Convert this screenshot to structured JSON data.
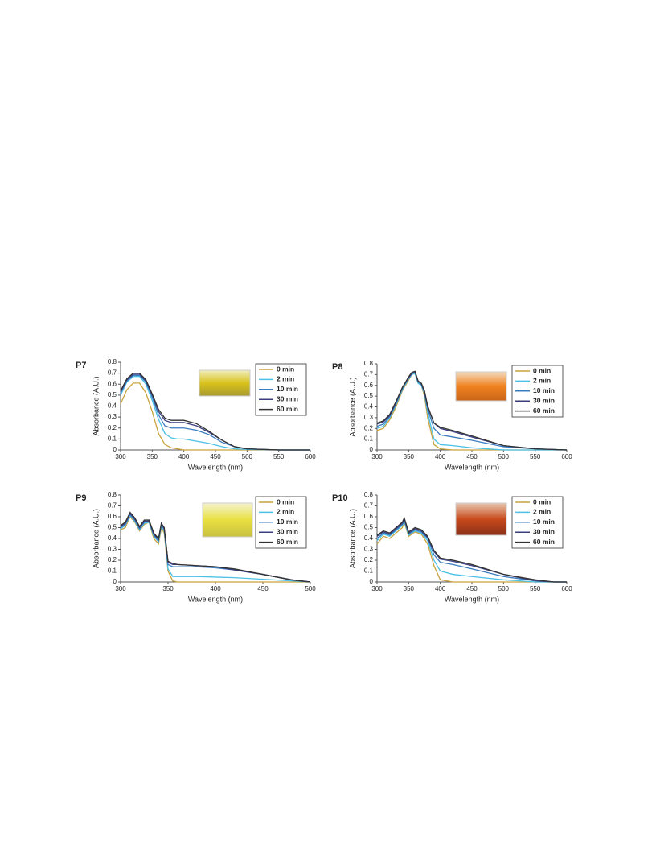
{
  "chart_data": [
    {
      "type": "line",
      "panel_label": "P7",
      "x_label": "Wavelength (nm)",
      "y_label": "Absorbance (A.U.)",
      "legend": "upper right",
      "x": [
        300,
        310,
        320,
        330,
        340,
        350,
        360,
        370,
        380,
        390,
        400,
        420,
        440,
        460,
        480,
        500,
        550,
        600
      ],
      "xlim": [
        300,
        600
      ],
      "xticks": [
        300,
        350,
        400,
        450,
        500,
        550,
        600
      ],
      "ylim": [
        0,
        0.8
      ],
      "yticks": [
        0,
        0.1,
        0.2,
        0.3,
        0.4,
        0.5,
        0.6,
        0.7,
        0.8
      ],
      "series": [
        {
          "name": "0 min",
          "color": "#c9a23c",
          "values": [
            0.42,
            0.55,
            0.61,
            0.61,
            0.52,
            0.35,
            0.15,
            0.05,
            0.02,
            0.01,
            0,
            0,
            0,
            0,
            0,
            0,
            0,
            0
          ]
        },
        {
          "name": "2 min",
          "color": "#4cc0e6",
          "values": [
            0.5,
            0.62,
            0.67,
            0.67,
            0.6,
            0.45,
            0.28,
            0.15,
            0.11,
            0.1,
            0.1,
            0.08,
            0.06,
            0.03,
            0.01,
            0.005,
            0,
            0
          ]
        },
        {
          "name": "10 min",
          "color": "#3a7cc0",
          "values": [
            0.52,
            0.63,
            0.68,
            0.68,
            0.62,
            0.48,
            0.32,
            0.22,
            0.2,
            0.2,
            0.2,
            0.18,
            0.14,
            0.07,
            0.03,
            0.01,
            0,
            0
          ]
        },
        {
          "name": "30 min",
          "color": "#3b3f82",
          "values": [
            0.53,
            0.64,
            0.69,
            0.69,
            0.63,
            0.5,
            0.35,
            0.27,
            0.25,
            0.25,
            0.25,
            0.22,
            0.16,
            0.09,
            0.03,
            0.01,
            0,
            0
          ]
        },
        {
          "name": "60 min",
          "color": "#333333",
          "values": [
            0.54,
            0.65,
            0.7,
            0.7,
            0.64,
            0.51,
            0.37,
            0.29,
            0.27,
            0.27,
            0.27,
            0.24,
            0.17,
            0.09,
            0.03,
            0.01,
            0,
            0
          ]
        }
      ]
    },
    {
      "type": "line",
      "panel_label": "P8",
      "x_label": "Wavelength (nm)",
      "y_label": "Absorbance (A.U.)",
      "legend": "upper right",
      "x": [
        300,
        310,
        320,
        330,
        340,
        350,
        355,
        360,
        365,
        370,
        375,
        380,
        390,
        400,
        420,
        450,
        500,
        550,
        600
      ],
      "xlim": [
        300,
        600
      ],
      "xticks": [
        300,
        350,
        400,
        450,
        500,
        550,
        600
      ],
      "ylim": [
        0,
        0.8
      ],
      "yticks": [
        0,
        0.1,
        0.2,
        0.3,
        0.4,
        0.5,
        0.6,
        0.7,
        0.8
      ],
      "series": [
        {
          "name": "0 min",
          "color": "#c9a23c",
          "values": [
            0.18,
            0.2,
            0.28,
            0.4,
            0.55,
            0.65,
            0.7,
            0.71,
            0.62,
            0.6,
            0.5,
            0.3,
            0.05,
            0.01,
            0,
            0,
            0,
            0,
            0
          ]
        },
        {
          "name": "2 min",
          "color": "#4cc0e6",
          "values": [
            0.2,
            0.22,
            0.3,
            0.42,
            0.56,
            0.66,
            0.7,
            0.71,
            0.62,
            0.6,
            0.52,
            0.35,
            0.1,
            0.05,
            0.04,
            0.02,
            0,
            0,
            0
          ]
        },
        {
          "name": "10 min",
          "color": "#3a7cc0",
          "values": [
            0.22,
            0.24,
            0.31,
            0.43,
            0.57,
            0.67,
            0.71,
            0.72,
            0.63,
            0.61,
            0.53,
            0.38,
            0.2,
            0.14,
            0.12,
            0.09,
            0.03,
            0.01,
            0
          ]
        },
        {
          "name": "30 min",
          "color": "#3b3f82",
          "values": [
            0.24,
            0.26,
            0.32,
            0.44,
            0.58,
            0.67,
            0.71,
            0.72,
            0.64,
            0.62,
            0.54,
            0.4,
            0.25,
            0.2,
            0.17,
            0.12,
            0.04,
            0.01,
            0
          ]
        },
        {
          "name": "60 min",
          "color": "#333333",
          "values": [
            0.25,
            0.27,
            0.33,
            0.45,
            0.58,
            0.68,
            0.72,
            0.73,
            0.64,
            0.62,
            0.55,
            0.41,
            0.25,
            0.21,
            0.18,
            0.13,
            0.04,
            0.01,
            0
          ]
        }
      ]
    },
    {
      "type": "line",
      "panel_label": "P9",
      "x_label": "Wavelength (nm)",
      "y_label": "Absorbance (A.U.)",
      "legend": "upper right",
      "x": [
        300,
        305,
        310,
        315,
        320,
        325,
        330,
        335,
        340,
        343,
        346,
        350,
        355,
        360,
        380,
        400,
        420,
        450,
        480,
        500
      ],
      "xlim": [
        300,
        500
      ],
      "xticks": [
        300,
        350,
        400,
        450,
        500
      ],
      "ylim": [
        0,
        0.8
      ],
      "yticks": [
        0,
        0.1,
        0.2,
        0.3,
        0.4,
        0.5,
        0.6,
        0.7,
        0.8
      ],
      "series": [
        {
          "name": "0 min",
          "color": "#c9a23c",
          "values": [
            0.48,
            0.5,
            0.6,
            0.55,
            0.47,
            0.53,
            0.55,
            0.4,
            0.35,
            0.5,
            0.45,
            0.1,
            0.01,
            0,
            0,
            0,
            0,
            0,
            0,
            0
          ]
        },
        {
          "name": "2 min",
          "color": "#4cc0e6",
          "values": [
            0.49,
            0.52,
            0.61,
            0.56,
            0.48,
            0.54,
            0.55,
            0.42,
            0.37,
            0.52,
            0.47,
            0.12,
            0.05,
            0.05,
            0.05,
            0.045,
            0.04,
            0.025,
            0.01,
            0
          ]
        },
        {
          "name": "10 min",
          "color": "#3a7cc0",
          "values": [
            0.5,
            0.53,
            0.62,
            0.57,
            0.49,
            0.55,
            0.56,
            0.43,
            0.38,
            0.53,
            0.48,
            0.16,
            0.14,
            0.14,
            0.14,
            0.13,
            0.11,
            0.07,
            0.02,
            0
          ]
        },
        {
          "name": "30 min",
          "color": "#3b3f82",
          "values": [
            0.51,
            0.54,
            0.63,
            0.58,
            0.5,
            0.56,
            0.56,
            0.44,
            0.39,
            0.54,
            0.49,
            0.18,
            0.16,
            0.16,
            0.15,
            0.14,
            0.11,
            0.07,
            0.02,
            0
          ]
        },
        {
          "name": "60 min",
          "color": "#333333",
          "values": [
            0.52,
            0.55,
            0.64,
            0.59,
            0.51,
            0.57,
            0.57,
            0.45,
            0.4,
            0.54,
            0.5,
            0.19,
            0.17,
            0.16,
            0.15,
            0.14,
            0.12,
            0.07,
            0.02,
            0
          ]
        }
      ]
    },
    {
      "type": "line",
      "panel_label": "P10",
      "x_label": "Wavelength (nm)",
      "y_label": "Absorbance (A.U.)",
      "legend": "upper right",
      "x": [
        300,
        310,
        320,
        330,
        340,
        343,
        350,
        360,
        370,
        380,
        390,
        400,
        420,
        450,
        500,
        550,
        580,
        600
      ],
      "xlim": [
        300,
        600
      ],
      "xticks": [
        300,
        350,
        400,
        450,
        500,
        550,
        600
      ],
      "ylim": [
        0,
        0.8
      ],
      "yticks": [
        0,
        0.1,
        0.2,
        0.3,
        0.4,
        0.5,
        0.6,
        0.7,
        0.8
      ],
      "series": [
        {
          "name": "0 min",
          "color": "#c9a23c",
          "values": [
            0.35,
            0.42,
            0.4,
            0.45,
            0.5,
            0.55,
            0.42,
            0.46,
            0.44,
            0.35,
            0.15,
            0.02,
            0,
            0,
            0,
            0,
            0,
            0
          ]
        },
        {
          "name": "2 min",
          "color": "#4cc0e6",
          "values": [
            0.38,
            0.44,
            0.42,
            0.47,
            0.52,
            0.56,
            0.43,
            0.47,
            0.45,
            0.38,
            0.2,
            0.1,
            0.07,
            0.05,
            0.02,
            0,
            0,
            0
          ]
        },
        {
          "name": "10 min",
          "color": "#3a7cc0",
          "values": [
            0.4,
            0.45,
            0.43,
            0.48,
            0.53,
            0.57,
            0.44,
            0.48,
            0.46,
            0.4,
            0.25,
            0.18,
            0.16,
            0.12,
            0.05,
            0.01,
            0,
            0
          ]
        },
        {
          "name": "30 min",
          "color": "#3b3f82",
          "values": [
            0.42,
            0.46,
            0.44,
            0.49,
            0.54,
            0.58,
            0.45,
            0.49,
            0.47,
            0.41,
            0.28,
            0.21,
            0.19,
            0.15,
            0.07,
            0.01,
            0,
            0
          ]
        },
        {
          "name": "60 min",
          "color": "#333333",
          "values": [
            0.43,
            0.47,
            0.45,
            0.5,
            0.55,
            0.59,
            0.46,
            0.5,
            0.48,
            0.42,
            0.29,
            0.22,
            0.2,
            0.16,
            0.07,
            0.02,
            0,
            0
          ]
        }
      ]
    }
  ]
}
